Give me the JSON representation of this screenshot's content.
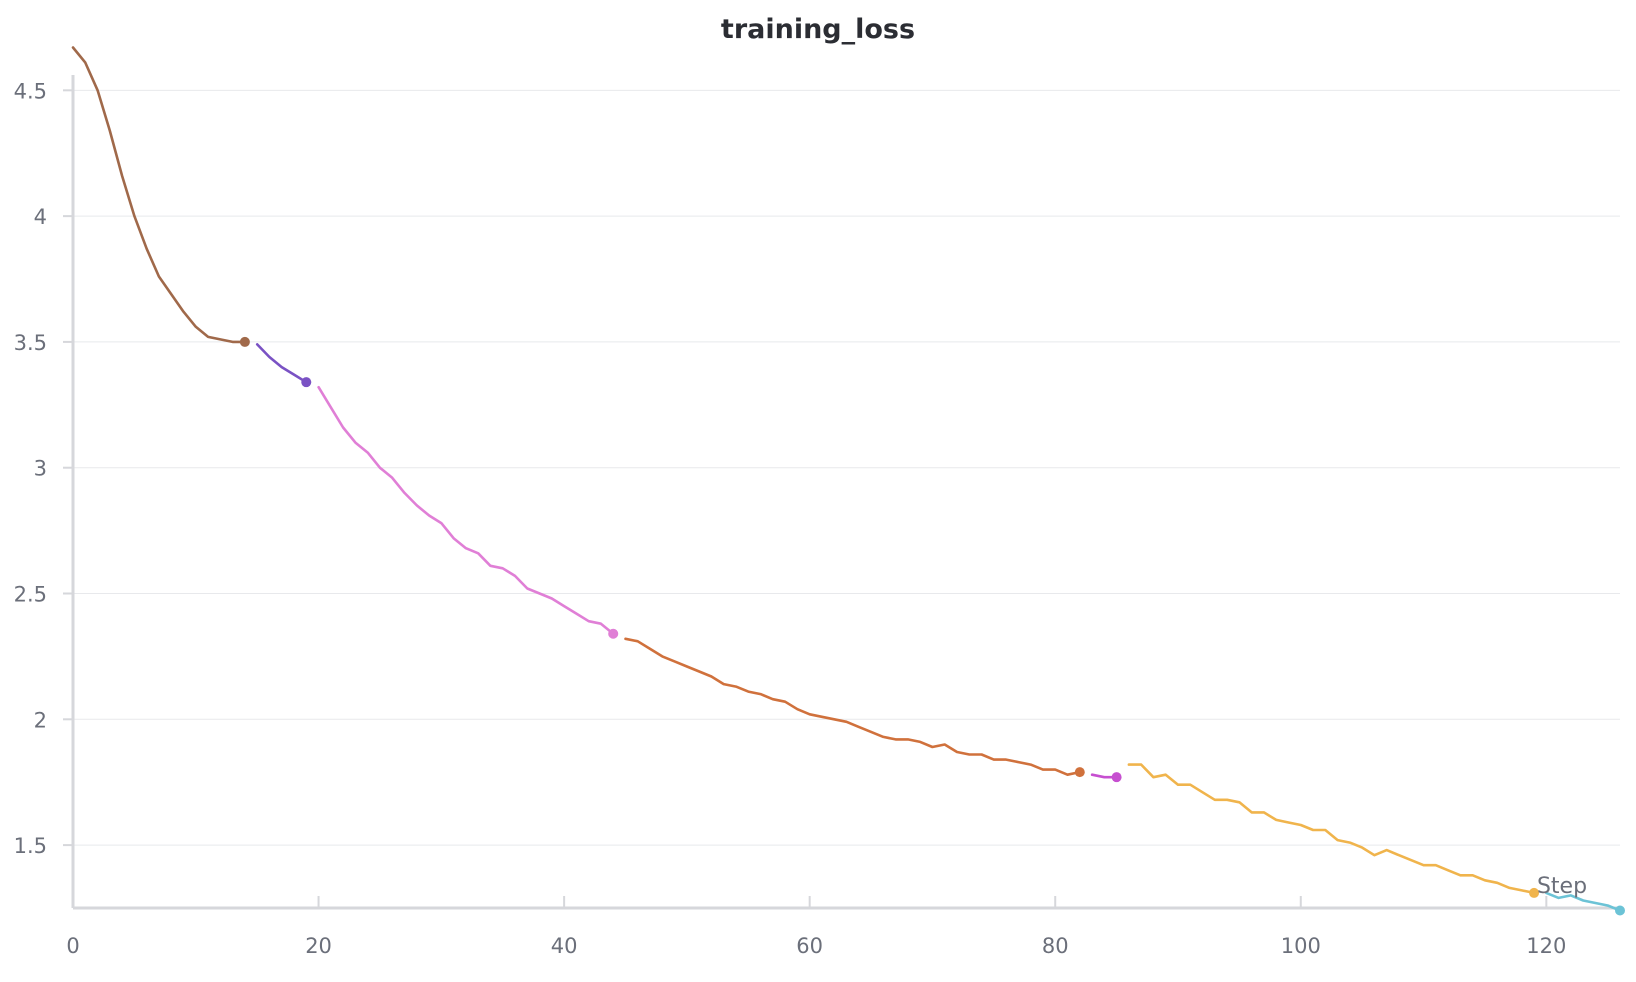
{
  "chart_data": {
    "type": "line",
    "title": "training_loss",
    "xlabel": "Step",
    "ylabel": "",
    "xlim": [
      0,
      126
    ],
    "ylim": [
      1.25,
      4.7
    ],
    "x_ticks": [
      0,
      20,
      40,
      60,
      80,
      100,
      120
    ],
    "y_ticks": [
      1.5,
      2,
      2.5,
      3,
      3.5,
      4,
      4.5
    ],
    "grid": true,
    "legend": "none",
    "series": [
      {
        "color": "#a0694a",
        "x": [
          0,
          1,
          2,
          3,
          4,
          5,
          6,
          7,
          8,
          9,
          10,
          11,
          12,
          13,
          14
        ],
        "y": [
          4.67,
          4.61,
          4.5,
          4.34,
          4.16,
          4.0,
          3.87,
          3.76,
          3.69,
          3.62,
          3.56,
          3.52,
          3.51,
          3.5,
          3.5
        ]
      },
      {
        "color": "#7a52c4",
        "x": [
          15,
          16,
          17,
          18,
          19
        ],
        "y": [
          3.49,
          3.44,
          3.4,
          3.37,
          3.34
        ]
      },
      {
        "color": "#e07fd6",
        "x": [
          20,
          21,
          22,
          23,
          24,
          25,
          26,
          27,
          28,
          29,
          30,
          31,
          32,
          33,
          34,
          35,
          36,
          37,
          38,
          39,
          40,
          41,
          42,
          43,
          44
        ],
        "y": [
          3.32,
          3.24,
          3.16,
          3.1,
          3.06,
          3.0,
          2.96,
          2.9,
          2.85,
          2.81,
          2.78,
          2.72,
          2.68,
          2.66,
          2.61,
          2.6,
          2.57,
          2.52,
          2.5,
          2.48,
          2.45,
          2.42,
          2.39,
          2.38,
          2.34
        ]
      },
      {
        "color": "#d0713c",
        "x": [
          45,
          46,
          47,
          48,
          49,
          50,
          51,
          52,
          53,
          54,
          55,
          56,
          57,
          58,
          59,
          60,
          61,
          62,
          63,
          64,
          65,
          66,
          67,
          68,
          69,
          70,
          71,
          72,
          73,
          74,
          75,
          76,
          77,
          78,
          79,
          80,
          81,
          82
        ],
        "y": [
          2.32,
          2.31,
          2.28,
          2.25,
          2.23,
          2.21,
          2.19,
          2.17,
          2.14,
          2.13,
          2.11,
          2.1,
          2.08,
          2.07,
          2.04,
          2.02,
          2.01,
          2.0,
          1.99,
          1.97,
          1.95,
          1.93,
          1.92,
          1.92,
          1.91,
          1.89,
          1.9,
          1.87,
          1.86,
          1.86,
          1.84,
          1.84,
          1.83,
          1.82,
          1.8,
          1.8,
          1.78,
          1.79
        ]
      },
      {
        "color": "#c64fd0",
        "x": [
          83,
          84,
          85
        ],
        "y": [
          1.78,
          1.77,
          1.77
        ]
      },
      {
        "color": "#f0b44c",
        "x": [
          86,
          87,
          88,
          89,
          90,
          91,
          92,
          93,
          94,
          95,
          96,
          97,
          98,
          99,
          100,
          101,
          102,
          103,
          104,
          105,
          106,
          107,
          108,
          109,
          110,
          111,
          112,
          113,
          114,
          115,
          116,
          117,
          118,
          119
        ],
        "y": [
          1.82,
          1.82,
          1.77,
          1.78,
          1.74,
          1.74,
          1.71,
          1.68,
          1.68,
          1.67,
          1.63,
          1.63,
          1.6,
          1.59,
          1.58,
          1.56,
          1.56,
          1.52,
          1.51,
          1.49,
          1.46,
          1.48,
          1.46,
          1.44,
          1.42,
          1.42,
          1.4,
          1.38,
          1.38,
          1.36,
          1.35,
          1.33,
          1.32,
          1.31
        ]
      },
      {
        "color": "#6cc3d6",
        "x": [
          120,
          121,
          122,
          123,
          124,
          125,
          126
        ],
        "y": [
          1.31,
          1.29,
          1.3,
          1.28,
          1.27,
          1.26,
          1.24
        ]
      }
    ]
  }
}
